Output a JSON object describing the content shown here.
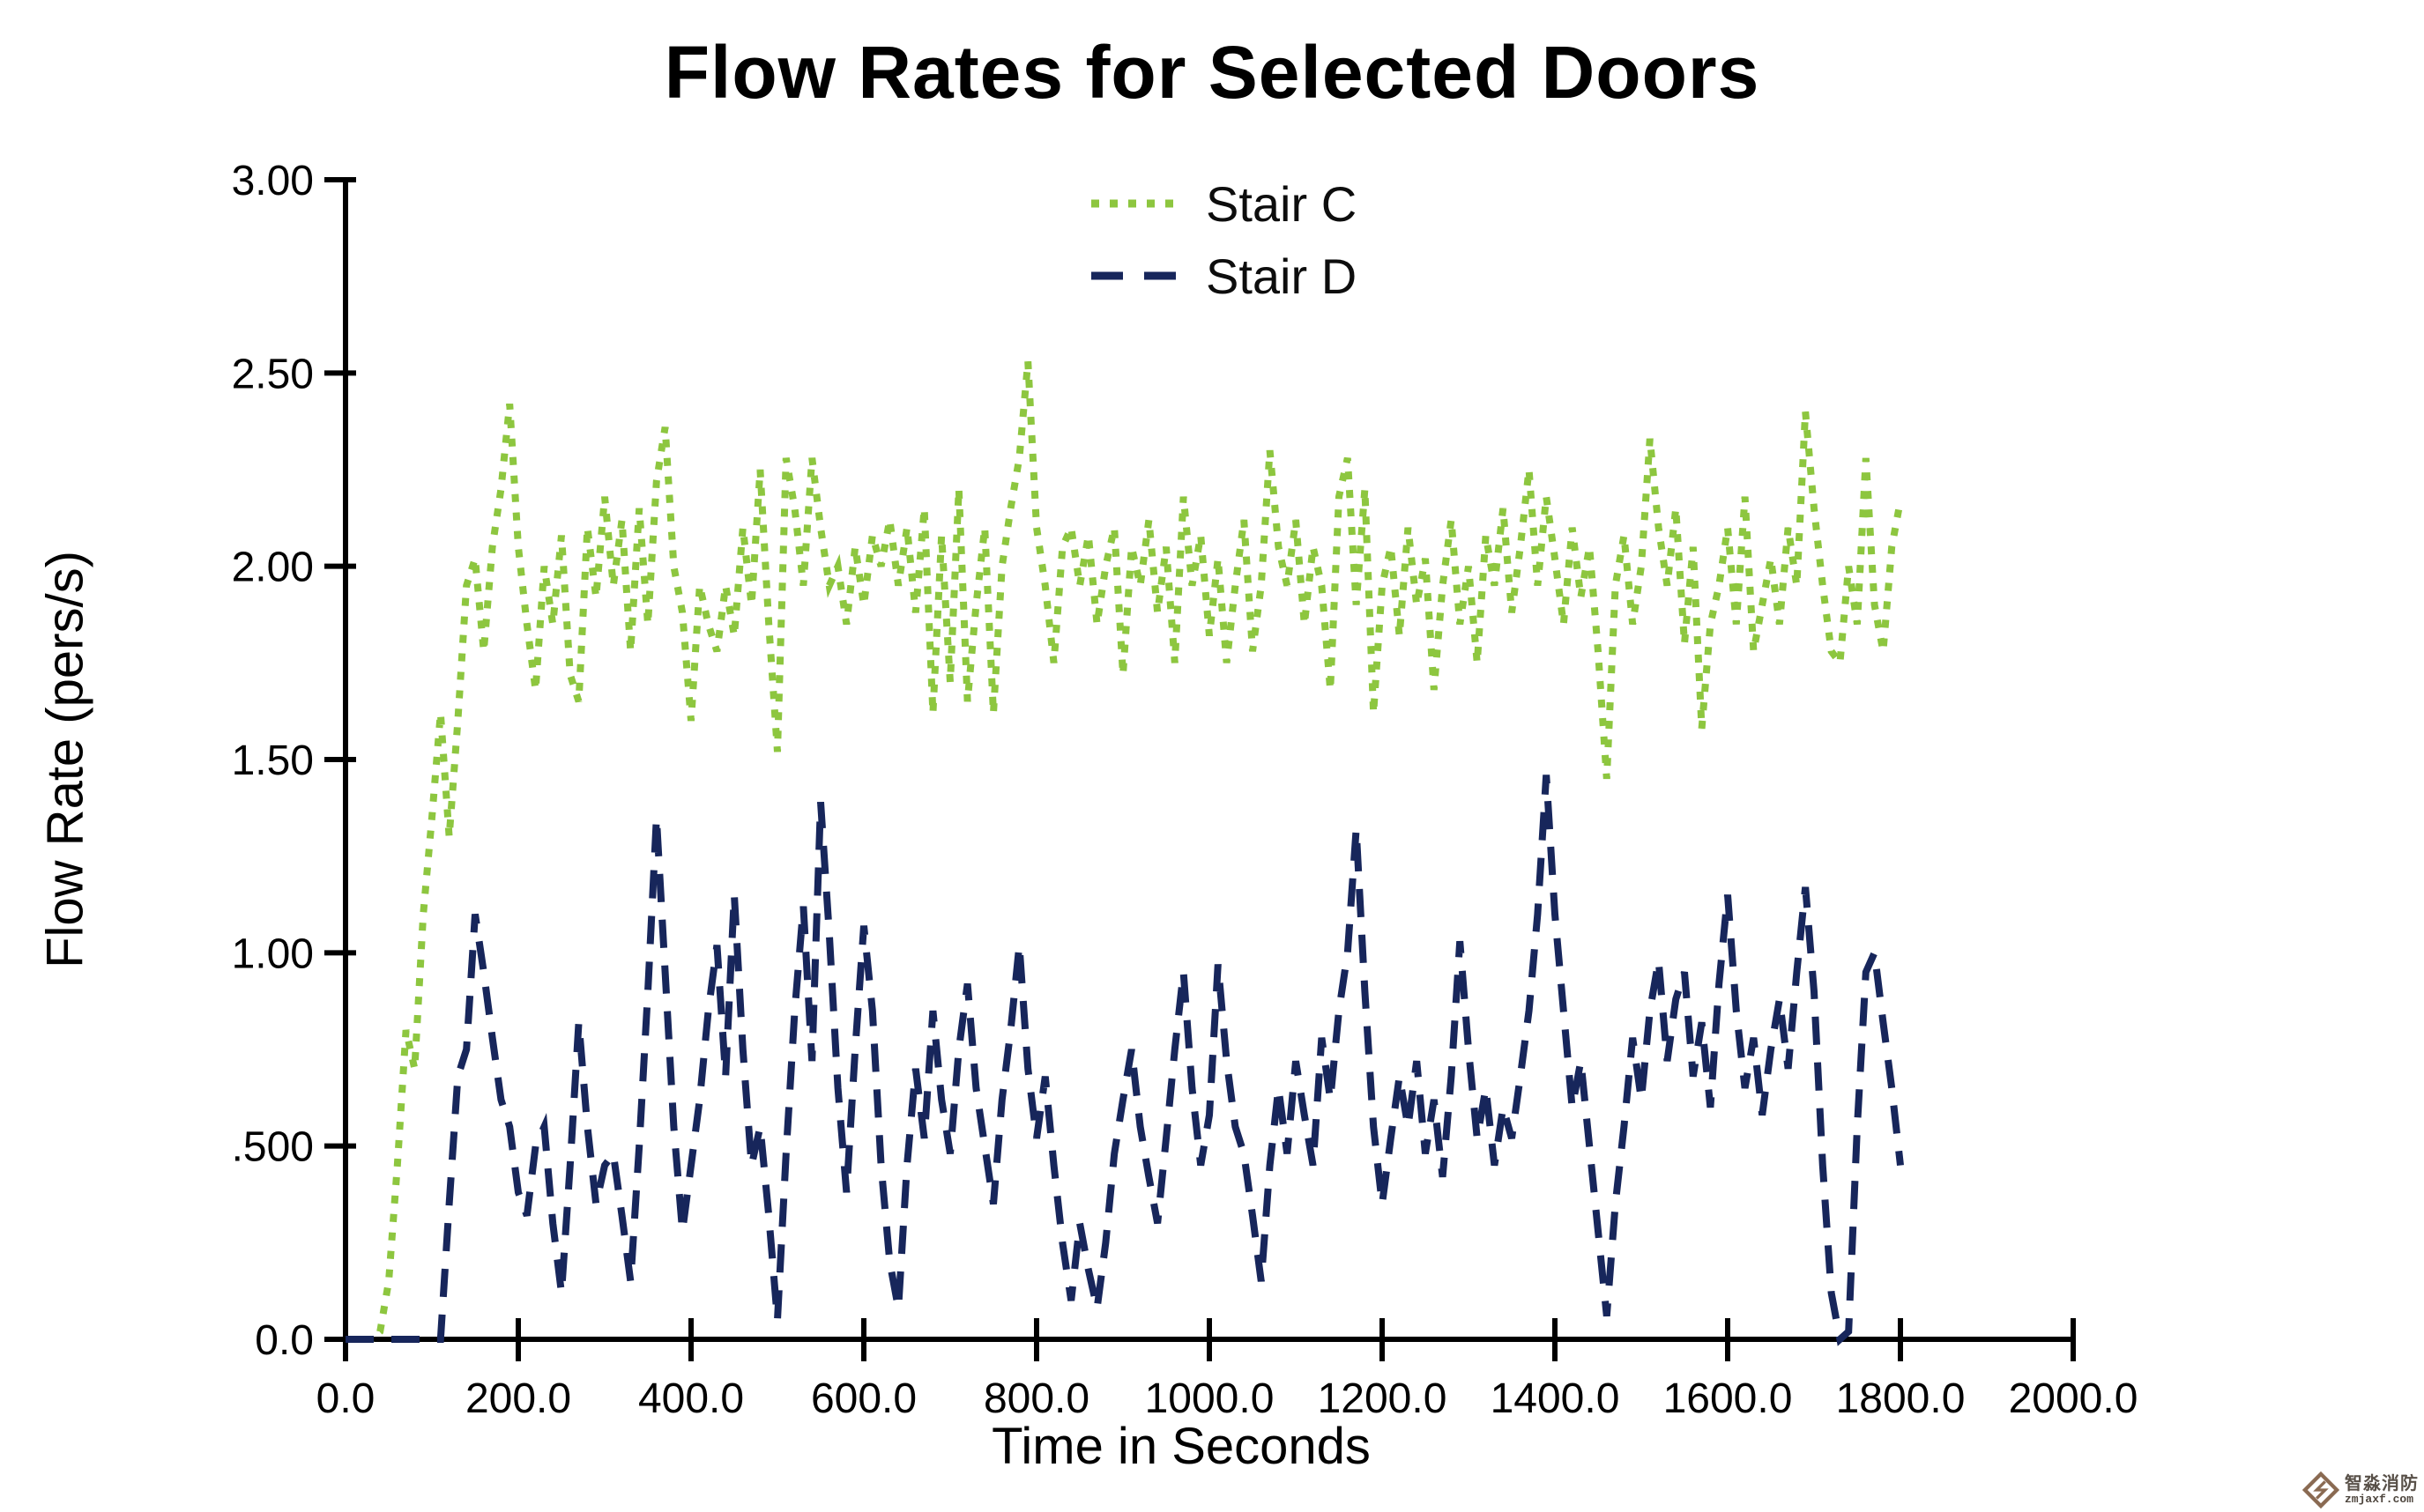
{
  "title": "Flow Rates for Selected Doors",
  "legend": {
    "items": [
      {
        "label": "Stair C",
        "color": "#8DC63F",
        "dash": "dotted"
      },
      {
        "label": "Stair D",
        "color": "#17265B",
        "dash": "dashed"
      }
    ]
  },
  "watermark": {
    "brand": "智淼消防",
    "domain": "zmjaxf.com",
    "logo_color": "#8a6a52"
  },
  "chart_data": {
    "type": "line",
    "title": "Flow Rates for Selected Doors",
    "xlabel": "Time in Seconds",
    "ylabel": "Flow Rate (pers/s)",
    "xlim": [
      0,
      2000
    ],
    "ylim": [
      0,
      3
    ],
    "grid": false,
    "legend_position": "top-center",
    "x_ticks": [
      0,
      200,
      400,
      600,
      800,
      1000,
      1200,
      1400,
      1600,
      1800,
      2000
    ],
    "x_tick_labels": [
      "0.0",
      "200.0",
      "400.0",
      "600.0",
      "800.0",
      "1000.0",
      "1200.0",
      "1400.0",
      "1600.0",
      "1800.0",
      "2000.0"
    ],
    "y_ticks": [
      0,
      0.5,
      1.0,
      1.5,
      2.0,
      2.5,
      3.0
    ],
    "y_tick_labels": [
      "0.0",
      ".500",
      "1.00",
      "1.50",
      "2.00",
      "2.50",
      "3.00"
    ],
    "x_start": 0,
    "x_step": 10,
    "series": [
      {
        "name": "Stair C",
        "color": "#8DC63F",
        "style": "dotted",
        "values": [
          0,
          0,
          0,
          0,
          0.02,
          0.15,
          0.45,
          0.8,
          0.7,
          1.1,
          1.35,
          1.62,
          1.3,
          1.6,
          1.95,
          2.02,
          1.78,
          2.05,
          2.2,
          2.42,
          2.05,
          1.85,
          1.68,
          2.0,
          1.85,
          2.08,
          1.72,
          1.65,
          2.1,
          1.92,
          2.18,
          1.95,
          2.12,
          1.78,
          2.15,
          1.85,
          2.22,
          2.36,
          2.0,
          1.88,
          1.6,
          1.95,
          1.85,
          1.78,
          1.95,
          1.82,
          2.1,
          1.9,
          2.25,
          1.85,
          1.52,
          2.28,
          2.15,
          1.95,
          2.28,
          2.1,
          1.95,
          2.0,
          1.85,
          2.05,
          1.9,
          2.08,
          2.0,
          2.12,
          1.95,
          2.1,
          1.88,
          2.15,
          1.62,
          2.08,
          1.7,
          2.2,
          1.65,
          1.9,
          2.1,
          1.62,
          2.0,
          2.15,
          2.28,
          2.53,
          2.1,
          1.95,
          1.75,
          2.05,
          2.1,
          1.95,
          2.08,
          1.85,
          2.0,
          2.1,
          1.72,
          2.05,
          1.95,
          2.12,
          1.88,
          2.05,
          1.75,
          2.18,
          1.95,
          2.08,
          1.82,
          2.02,
          1.75,
          1.95,
          2.12,
          1.78,
          1.95,
          2.3,
          2.05,
          1.95,
          2.12,
          1.85,
          2.05,
          1.95,
          1.68,
          2.18,
          2.28,
          1.9,
          2.2,
          1.62,
          1.95,
          2.05,
          1.82,
          2.1,
          1.9,
          2.02,
          1.68,
          1.95,
          2.12,
          1.85,
          2.0,
          1.75,
          2.08,
          1.95,
          2.15,
          1.88,
          2.05,
          2.25,
          1.95,
          2.18,
          2.02,
          1.85,
          2.1,
          1.92,
          2.05,
          1.78,
          1.45,
          1.95,
          2.08,
          1.85,
          2.0,
          2.33,
          2.1,
          1.95,
          2.15,
          1.8,
          2.05,
          1.58,
          1.85,
          1.95,
          2.1,
          1.85,
          2.18,
          1.78,
          1.9,
          2.02,
          1.85,
          2.1,
          1.95,
          2.4,
          2.15,
          1.95,
          1.78,
          1.75,
          2.0,
          1.85,
          2.28,
          1.9,
          1.78,
          2.05,
          2.17
        ]
      },
      {
        "name": "Stair D",
        "color": "#17265B",
        "style": "dashed",
        "values": [
          0,
          0,
          0,
          0,
          0,
          0,
          0,
          0,
          0,
          0,
          0,
          0,
          0.35,
          0.68,
          0.75,
          1.1,
          0.95,
          0.78,
          0.62,
          0.55,
          0.38,
          0.32,
          0.5,
          0.55,
          0.3,
          0.12,
          0.45,
          0.82,
          0.55,
          0.35,
          0.45,
          0.48,
          0.32,
          0.15,
          0.5,
          0.9,
          1.35,
          0.95,
          0.55,
          0.28,
          0.45,
          0.62,
          0.85,
          1.02,
          0.68,
          1.15,
          0.75,
          0.45,
          0.55,
          0.32,
          0.05,
          0.48,
          0.85,
          1.12,
          0.72,
          1.39,
          1.05,
          0.65,
          0.38,
          0.75,
          1.07,
          0.85,
          0.45,
          0.2,
          0.08,
          0.45,
          0.7,
          0.52,
          0.85,
          0.62,
          0.48,
          0.75,
          0.92,
          0.65,
          0.5,
          0.35,
          0.62,
          0.8,
          1.02,
          0.7,
          0.52,
          0.68,
          0.45,
          0.25,
          0.1,
          0.3,
          0.18,
          0.08,
          0.25,
          0.48,
          0.62,
          0.75,
          0.55,
          0.42,
          0.3,
          0.52,
          0.75,
          0.95,
          0.65,
          0.45,
          0.58,
          0.97,
          0.72,
          0.55,
          0.48,
          0.32,
          0.15,
          0.45,
          0.65,
          0.48,
          0.72,
          0.58,
          0.45,
          0.78,
          0.62,
          0.85,
          1.0,
          1.32,
          0.9,
          0.55,
          0.35,
          0.52,
          0.68,
          0.55,
          0.72,
          0.48,
          0.62,
          0.42,
          0.68,
          1.03,
          0.75,
          0.52,
          0.65,
          0.45,
          0.6,
          0.52,
          0.68,
          0.85,
          1.1,
          1.46,
          1.1,
          0.85,
          0.6,
          0.72,
          0.5,
          0.28,
          0.06,
          0.35,
          0.55,
          0.78,
          0.62,
          0.85,
          0.98,
          0.72,
          0.88,
          0.95,
          0.68,
          0.82,
          0.6,
          0.92,
          1.15,
          0.85,
          0.65,
          0.78,
          0.58,
          0.75,
          0.88,
          0.7,
          0.95,
          1.17,
          0.9,
          0.45,
          0.12,
          0.0,
          0.02,
          0.55,
          0.95,
          1.0,
          0.82,
          0.65,
          0.45
        ]
      }
    ]
  }
}
